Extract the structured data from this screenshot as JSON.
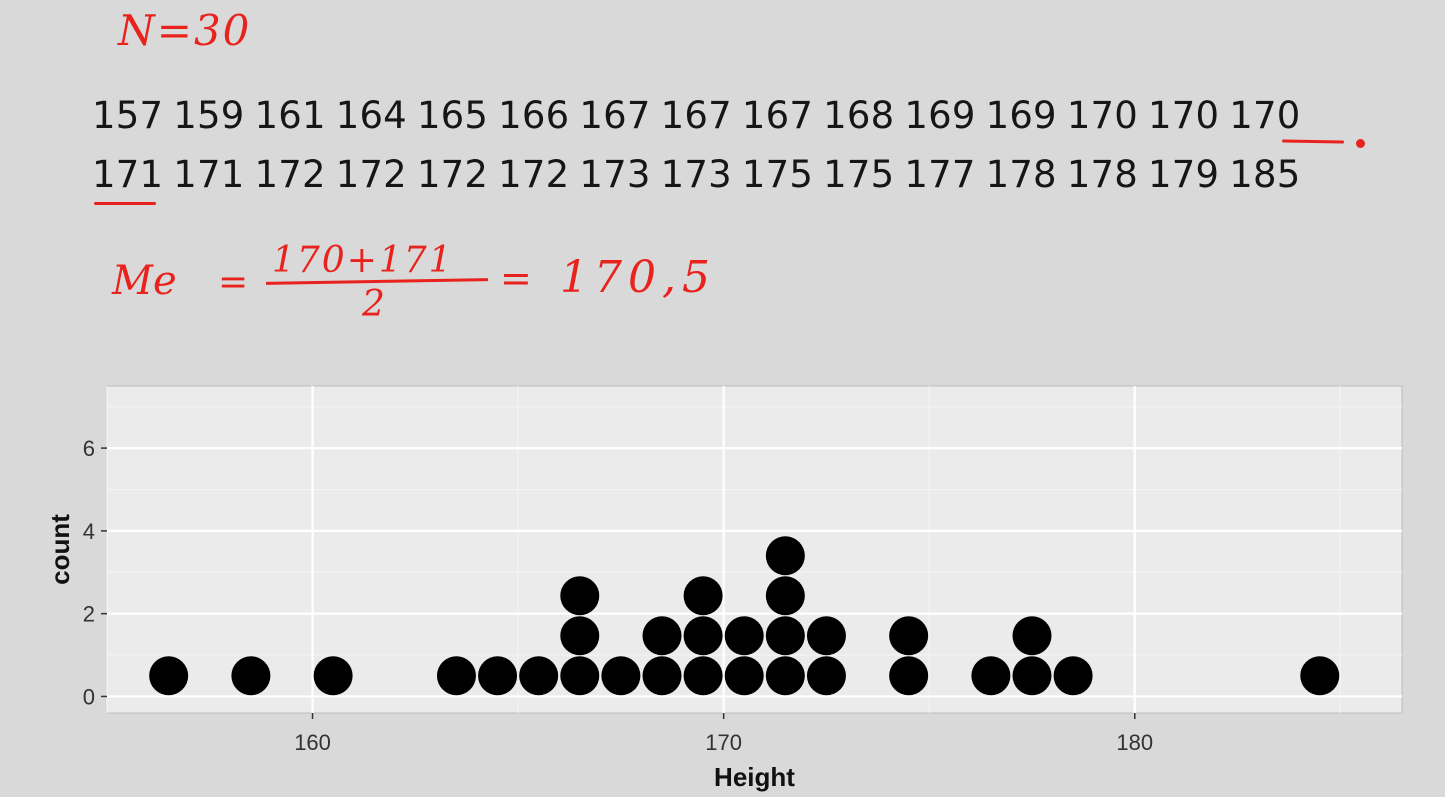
{
  "annotations": {
    "n_label": "N=30",
    "median_symbol": "Me",
    "eq": "=",
    "numerator": "170+171",
    "denominator": "2",
    "result": "170,5"
  },
  "values_row1": [
    "157",
    "159",
    "161",
    "164",
    "165",
    "166",
    "167",
    "167",
    "167",
    "168",
    "169",
    "169",
    "170",
    "170",
    "170"
  ],
  "values_row2": [
    "171",
    "171",
    "172",
    "172",
    "172",
    "172",
    "173",
    "173",
    "175",
    "175",
    "177",
    "178",
    "178",
    "179",
    "185"
  ],
  "colors": {
    "annotation": "#e8231d",
    "panel": "#ebebeb",
    "dots": "#000000"
  },
  "chart_data": {
    "type": "scatter",
    "subtype": "dotplot",
    "xlabel": "Height",
    "ylabel": "count",
    "xlim": [
      155,
      186.5
    ],
    "ylim": [
      -0.4,
      7.5
    ],
    "x_ticks": [
      160,
      170,
      180
    ],
    "y_ticks": [
      0,
      2,
      4,
      6
    ],
    "grid": true,
    "points": [
      {
        "x": 156.5,
        "n": 1
      },
      {
        "x": 158.5,
        "n": 1
      },
      {
        "x": 160.5,
        "n": 1
      },
      {
        "x": 163.5,
        "n": 1
      },
      {
        "x": 164.5,
        "n": 1
      },
      {
        "x": 165.5,
        "n": 1
      },
      {
        "x": 166.5,
        "n": 3
      },
      {
        "x": 167.5,
        "n": 1
      },
      {
        "x": 168.5,
        "n": 2
      },
      {
        "x": 169.5,
        "n": 3
      },
      {
        "x": 170.5,
        "n": 2
      },
      {
        "x": 171.5,
        "n": 4
      },
      {
        "x": 172.5,
        "n": 2
      },
      {
        "x": 174.5,
        "n": 2
      },
      {
        "x": 176.5,
        "n": 1
      },
      {
        "x": 177.5,
        "n": 2
      },
      {
        "x": 178.5,
        "n": 1
      },
      {
        "x": 184.5,
        "n": 1
      }
    ]
  }
}
